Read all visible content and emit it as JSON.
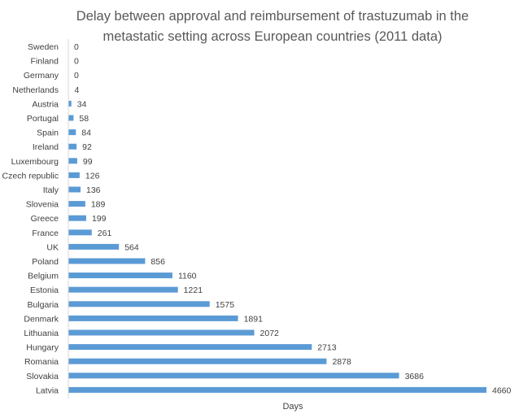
{
  "chart_data": {
    "type": "bar",
    "orientation": "horizontal",
    "title": "Delay between approval and reimbursement of trastuzumab in the metastatic setting across European countries (2011 data)",
    "title_lines": [
      "Delay between approval and reimbursement of trastuzumab in the",
      "metastatic setting across European countries (2011 data)"
    ],
    "xlabel": "Days",
    "ylabel": "",
    "categories": [
      "Sweden",
      "Finland",
      "Germany",
      "Netherlands",
      "Austria",
      "Portugal",
      "Spain",
      "Ireland",
      "Luxembourg",
      "Czech republic",
      "Italy",
      "Slovenia",
      "Greece",
      "France",
      "UK",
      "Poland",
      "Belgium",
      "Estonia",
      "Bulgaria",
      "Denmark",
      "Lithuania",
      "Hungary",
      "Romania",
      "Slovakia",
      "Latvia"
    ],
    "values": [
      0,
      0,
      0,
      4,
      34,
      58,
      84,
      92,
      99,
      126,
      136,
      189,
      199,
      261,
      564,
      856,
      1160,
      1221,
      1575,
      1891,
      2072,
      2713,
      2878,
      3686,
      4660
    ],
    "xlim": [
      0,
      4660
    ],
    "data_labels": true,
    "grid": false,
    "legend": "none",
    "bar_color": "#5B9BD5",
    "axis_color": "#D9D9D9",
    "text_color": "#404040",
    "title_color": "#595959"
  }
}
